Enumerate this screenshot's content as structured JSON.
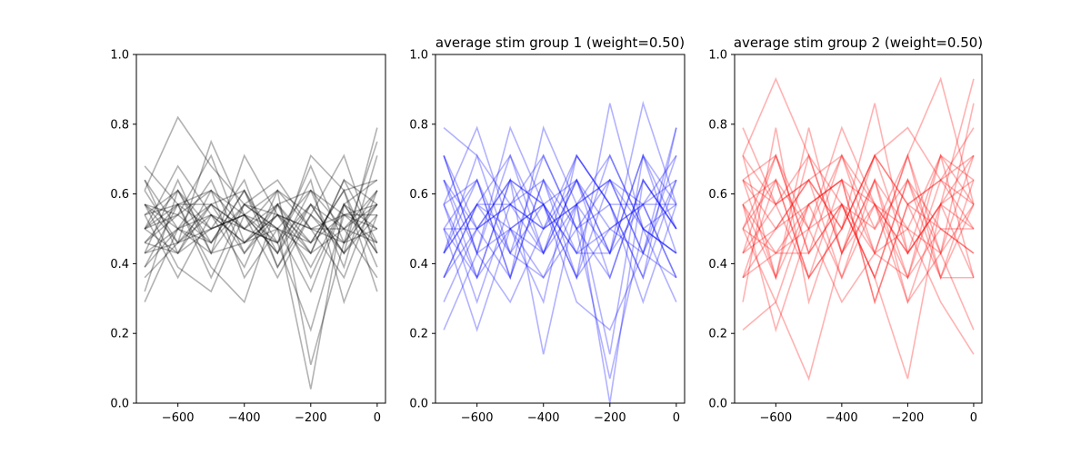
{
  "figure": {
    "panels": [
      {
        "title": "",
        "color": "#000000"
      },
      {
        "title": "average stim group 1 (weight=0.50)",
        "color": "#0000ff"
      },
      {
        "title": "average stim group 2 (weight=0.50)",
        "color": "#ff0000"
      }
    ]
  },
  "chart_data": [
    {
      "type": "line",
      "title": "",
      "xlabel": "",
      "ylabel": "",
      "xlim": [
        -725,
        25
      ],
      "ylim": [
        0,
        1
      ],
      "x_ticks": [
        -600,
        -400,
        -200,
        0
      ],
      "x_tick_labels": [
        "−600",
        "−400",
        "−200",
        "0"
      ],
      "y_ticks": [
        0.0,
        0.2,
        0.4,
        0.6,
        0.8,
        1.0
      ],
      "y_tick_labels": [
        "0.0",
        "0.2",
        "0.4",
        "0.6",
        "0.8",
        "1.0"
      ],
      "x": [
        -700,
        -600,
        -500,
        -400,
        -300,
        -200,
        -100,
        0
      ],
      "line_color": "#000000",
      "line_alpha": 0.3,
      "grid": false,
      "series": [
        {
          "values": [
            0.68,
            0.57,
            0.61,
            0.54,
            0.5,
            0.46,
            0.54,
            0.57
          ]
        },
        {
          "values": [
            0.64,
            0.5,
            0.54,
            0.46,
            0.57,
            0.43,
            0.5,
            0.61
          ]
        },
        {
          "values": [
            0.61,
            0.82,
            0.68,
            0.57,
            0.5,
            0.61,
            0.54,
            0.46
          ]
        },
        {
          "values": [
            0.57,
            0.46,
            0.75,
            0.54,
            0.43,
            0.71,
            0.61,
            0.64
          ]
        },
        {
          "values": [
            0.54,
            0.61,
            0.43,
            0.71,
            0.54,
            0.5,
            0.46,
            0.75
          ]
        },
        {
          "values": [
            0.5,
            0.43,
            0.57,
            0.5,
            0.61,
            0.54,
            0.71,
            0.43
          ]
        },
        {
          "values": [
            0.46,
            0.54,
            0.46,
            0.61,
            0.46,
            0.57,
            0.43,
            0.54
          ]
        },
        {
          "values": [
            0.43,
            0.5,
            0.64,
            0.43,
            0.57,
            0.36,
            0.57,
            0.5
          ]
        },
        {
          "values": [
            0.39,
            0.57,
            0.5,
            0.54,
            0.43,
            0.61,
            0.5,
            0.57
          ]
        },
        {
          "values": [
            0.36,
            0.46,
            0.54,
            0.46,
            0.5,
            0.43,
            0.64,
            0.46
          ]
        },
        {
          "values": [
            0.32,
            0.61,
            0.46,
            0.57,
            0.54,
            0.5,
            0.36,
            0.61
          ]
        },
        {
          "values": [
            0.29,
            0.5,
            0.57,
            0.5,
            0.46,
            0.21,
            0.54,
            0.5
          ]
        },
        {
          "values": [
            0.57,
            0.39,
            0.32,
            0.54,
            0.61,
            0.11,
            0.46,
            0.57
          ]
        },
        {
          "values": [
            0.5,
            0.54,
            0.61,
            0.36,
            0.5,
            0.04,
            0.57,
            0.43
          ]
        },
        {
          "values": [
            0.64,
            0.43,
            0.5,
            0.64,
            0.39,
            0.57,
            0.43,
            0.79
          ]
        },
        {
          "values": [
            0.46,
            0.57,
            0.39,
            0.29,
            0.57,
            0.46,
            0.61,
            0.32
          ]
        },
        {
          "values": [
            0.54,
            0.36,
            0.54,
            0.5,
            0.46,
            0.64,
            0.29,
            0.54
          ]
        },
        {
          "values": [
            0.43,
            0.64,
            0.43,
            0.57,
            0.64,
            0.5,
            0.5,
            0.36
          ]
        },
        {
          "values": [
            0.61,
            0.46,
            0.57,
            0.43,
            0.54,
            0.39,
            0.57,
            0.64
          ]
        },
        {
          "values": [
            0.5,
            0.61,
            0.5,
            0.54,
            0.36,
            0.54,
            0.46,
            0.5
          ]
        },
        {
          "values": [
            0.57,
            0.54,
            0.71,
            0.46,
            0.54,
            0.43,
            0.64,
            0.57
          ]
        },
        {
          "values": [
            0.39,
            0.5,
            0.46,
            0.61,
            0.43,
            0.57,
            0.5,
            0.46
          ]
        },
        {
          "values": [
            0.46,
            0.43,
            0.61,
            0.5,
            0.57,
            0.61,
            0.39,
            0.71
          ]
        },
        {
          "values": [
            0.54,
            0.57,
            0.36,
            0.57,
            0.5,
            0.32,
            0.57,
            0.43
          ]
        },
        {
          "values": [
            0.5,
            0.68,
            0.54,
            0.39,
            0.61,
            0.5,
            0.54,
            0.54
          ]
        },
        {
          "values": [
            0.43,
            0.46,
            0.5,
            0.54,
            0.46,
            0.68,
            0.46,
            0.61
          ]
        },
        {
          "values": [
            0.57,
            0.5,
            0.43,
            0.46,
            0.54,
            0.46,
            0.61,
            0.39
          ]
        },
        {
          "values": [
            0.5,
            0.57,
            0.57,
            0.61,
            0.39,
            0.54,
            0.43,
            0.57
          ]
        }
      ]
    },
    {
      "type": "line",
      "title": "average stim group 1 (weight=0.50)",
      "xlabel": "",
      "ylabel": "",
      "xlim": [
        -725,
        25
      ],
      "ylim": [
        0,
        1
      ],
      "x_ticks": [
        -600,
        -400,
        -200,
        0
      ],
      "x_tick_labels": [
        "−600",
        "−400",
        "−200",
        "0"
      ],
      "y_ticks": [
        0.0,
        0.2,
        0.4,
        0.6,
        0.8,
        1.0
      ],
      "y_tick_labels": [
        "0.0",
        "0.2",
        "0.4",
        "0.6",
        "0.8",
        "1.0"
      ],
      "x": [
        -700,
        -600,
        -500,
        -400,
        -300,
        -200,
        -100,
        0
      ],
      "line_color": "#0000ff",
      "line_alpha": 0.3,
      "grid": false,
      "series": [
        {
          "values": [
            0.79,
            0.71,
            0.57,
            0.5,
            0.64,
            0.43,
            0.57,
            0.71
          ]
        },
        {
          "values": [
            0.71,
            0.43,
            0.79,
            0.57,
            0.36,
            0.86,
            0.5,
            0.29
          ]
        },
        {
          "values": [
            0.64,
            0.5,
            0.36,
            0.79,
            0.57,
            0.43,
            0.86,
            0.57
          ]
        },
        {
          "values": [
            0.57,
            0.79,
            0.5,
            0.29,
            0.71,
            0.57,
            0.36,
            0.79
          ]
        },
        {
          "values": [
            0.5,
            0.36,
            0.64,
            0.57,
            0.43,
            0.71,
            0.5,
            0.43
          ]
        },
        {
          "values": [
            0.43,
            0.64,
            0.43,
            0.71,
            0.5,
            0.36,
            0.64,
            0.5
          ]
        },
        {
          "values": [
            0.36,
            0.57,
            0.71,
            0.43,
            0.64,
            0.5,
            0.43,
            0.64
          ]
        },
        {
          "values": [
            0.29,
            0.5,
            0.57,
            0.64,
            0.36,
            0.64,
            0.57,
            0.36
          ]
        },
        {
          "values": [
            0.21,
            0.43,
            0.29,
            0.5,
            0.57,
            0.14,
            0.71,
            0.57
          ]
        },
        {
          "values": [
            0.5,
            0.21,
            0.5,
            0.36,
            0.5,
            0.07,
            0.5,
            0.43
          ]
        },
        {
          "values": [
            0.57,
            0.36,
            0.64,
            0.14,
            0.57,
            0.0,
            0.64,
            0.5
          ]
        },
        {
          "values": [
            0.43,
            0.57,
            0.43,
            0.57,
            0.29,
            0.21,
            0.43,
            0.71
          ]
        },
        {
          "values": [
            0.71,
            0.5,
            0.57,
            0.43,
            0.71,
            0.57,
            0.29,
            0.57
          ]
        },
        {
          "values": [
            0.5,
            0.64,
            0.36,
            0.64,
            0.43,
            0.5,
            0.57,
            0.36
          ]
        },
        {
          "values": [
            0.64,
            0.43,
            0.71,
            0.5,
            0.57,
            0.64,
            0.43,
            0.79
          ]
        },
        {
          "values": [
            0.36,
            0.57,
            0.5,
            0.57,
            0.64,
            0.43,
            0.71,
            0.5
          ]
        },
        {
          "values": [
            0.57,
            0.29,
            0.57,
            0.71,
            0.5,
            0.57,
            0.36,
            0.64
          ]
        },
        {
          "values": [
            0.43,
            0.71,
            0.43,
            0.36,
            0.57,
            0.71,
            0.5,
            0.43
          ]
        },
        {
          "values": [
            0.5,
            0.5,
            0.64,
            0.57,
            0.36,
            0.5,
            0.57,
            0.57
          ]
        },
        {
          "values": [
            0.64,
            0.36,
            0.5,
            0.43,
            0.64,
            0.36,
            0.64,
            0.5
          ]
        },
        {
          "values": [
            0.57,
            0.64,
            0.36,
            0.64,
            0.5,
            0.64,
            0.43,
            0.36
          ]
        },
        {
          "values": [
            0.43,
            0.57,
            0.57,
            0.5,
            0.71,
            0.57,
            0.57,
            0.64
          ]
        },
        {
          "values": [
            0.71,
            0.43,
            0.5,
            0.57,
            0.43,
            0.43,
            0.71,
            0.43
          ]
        },
        {
          "values": [
            0.36,
            0.5,
            0.64,
            0.43,
            0.57,
            0.64,
            0.5,
            0.57
          ]
        }
      ]
    },
    {
      "type": "line",
      "title": "average stim group 2 (weight=0.50)",
      "xlabel": "",
      "ylabel": "",
      "xlim": [
        -725,
        25
      ],
      "ylim": [
        0,
        1
      ],
      "x_ticks": [
        -600,
        -400,
        -200,
        0
      ],
      "x_tick_labels": [
        "−600",
        "−400",
        "−200",
        "0"
      ],
      "y_ticks": [
        0.0,
        0.2,
        0.4,
        0.6,
        0.8,
        1.0
      ],
      "y_tick_labels": [
        "0.0",
        "0.2",
        "0.4",
        "0.6",
        "0.8",
        "1.0"
      ],
      "x": [
        -700,
        -600,
        -500,
        -400,
        -300,
        -200,
        -100,
        0
      ],
      "line_color": "#ff0000",
      "line_alpha": 0.3,
      "grid": false,
      "series": [
        {
          "values": [
            0.79,
            0.57,
            0.64,
            0.5,
            0.86,
            0.43,
            0.57,
            0.93
          ]
        },
        {
          "values": [
            0.71,
            0.93,
            0.71,
            0.57,
            0.43,
            0.71,
            0.93,
            0.57
          ]
        },
        {
          "values": [
            0.64,
            0.71,
            0.5,
            0.79,
            0.57,
            0.5,
            0.43,
            0.86
          ]
        },
        {
          "values": [
            0.57,
            0.36,
            0.79,
            0.43,
            0.71,
            0.79,
            0.64,
            0.71
          ]
        },
        {
          "values": [
            0.5,
            0.64,
            0.36,
            0.64,
            0.29,
            0.57,
            0.36,
            0.64
          ]
        },
        {
          "values": [
            0.43,
            0.5,
            0.57,
            0.36,
            0.64,
            0.36,
            0.71,
            0.57
          ]
        },
        {
          "values": [
            0.36,
            0.43,
            0.43,
            0.71,
            0.5,
            0.64,
            0.5,
            0.43
          ]
        },
        {
          "values": [
            0.29,
            0.79,
            0.29,
            0.57,
            0.36,
            0.07,
            0.57,
            0.36
          ]
        },
        {
          "values": [
            0.21,
            0.29,
            0.07,
            0.43,
            0.57,
            0.29,
            0.43,
            0.21
          ]
        },
        {
          "values": [
            0.57,
            0.21,
            0.5,
            0.29,
            0.43,
            0.5,
            0.29,
            0.14
          ]
        },
        {
          "values": [
            0.71,
            0.57,
            0.64,
            0.5,
            0.71,
            0.57,
            0.64,
            0.79
          ]
        },
        {
          "values": [
            0.64,
            0.36,
            0.57,
            0.64,
            0.57,
            0.43,
            0.57,
            0.5
          ]
        },
        {
          "values": [
            0.5,
            0.71,
            0.43,
            0.57,
            0.36,
            0.64,
            0.43,
            0.71
          ]
        },
        {
          "values": [
            0.43,
            0.57,
            0.71,
            0.43,
            0.64,
            0.5,
            0.71,
            0.36
          ]
        },
        {
          "values": [
            0.57,
            0.43,
            0.5,
            0.71,
            0.43,
            0.71,
            0.36,
            0.57
          ]
        },
        {
          "values": [
            0.36,
            0.64,
            0.36,
            0.5,
            0.71,
            0.43,
            0.57,
            0.64
          ]
        },
        {
          "values": [
            0.64,
            0.5,
            0.64,
            0.36,
            0.57,
            0.36,
            0.5,
            0.43
          ]
        },
        {
          "values": [
            0.5,
            0.29,
            0.57,
            0.64,
            0.29,
            0.57,
            0.64,
            0.5
          ]
        },
        {
          "values": [
            0.43,
            0.71,
            0.43,
            0.57,
            0.5,
            0.71,
            0.43,
            0.57
          ]
        },
        {
          "values": [
            0.71,
            0.36,
            0.71,
            0.43,
            0.64,
            0.29,
            0.57,
            0.71
          ]
        },
        {
          "values": [
            0.57,
            0.64,
            0.5,
            0.57,
            0.36,
            0.64,
            0.36,
            0.36
          ]
        },
        {
          "values": [
            0.36,
            0.5,
            0.64,
            0.71,
            0.57,
            0.43,
            0.71,
            0.64
          ]
        },
        {
          "values": [
            0.64,
            0.57,
            0.36,
            0.5,
            0.71,
            0.57,
            0.5,
            0.5
          ]
        },
        {
          "values": [
            0.5,
            0.43,
            0.57,
            0.64,
            0.43,
            0.36,
            0.64,
            0.57
          ]
        }
      ]
    }
  ]
}
